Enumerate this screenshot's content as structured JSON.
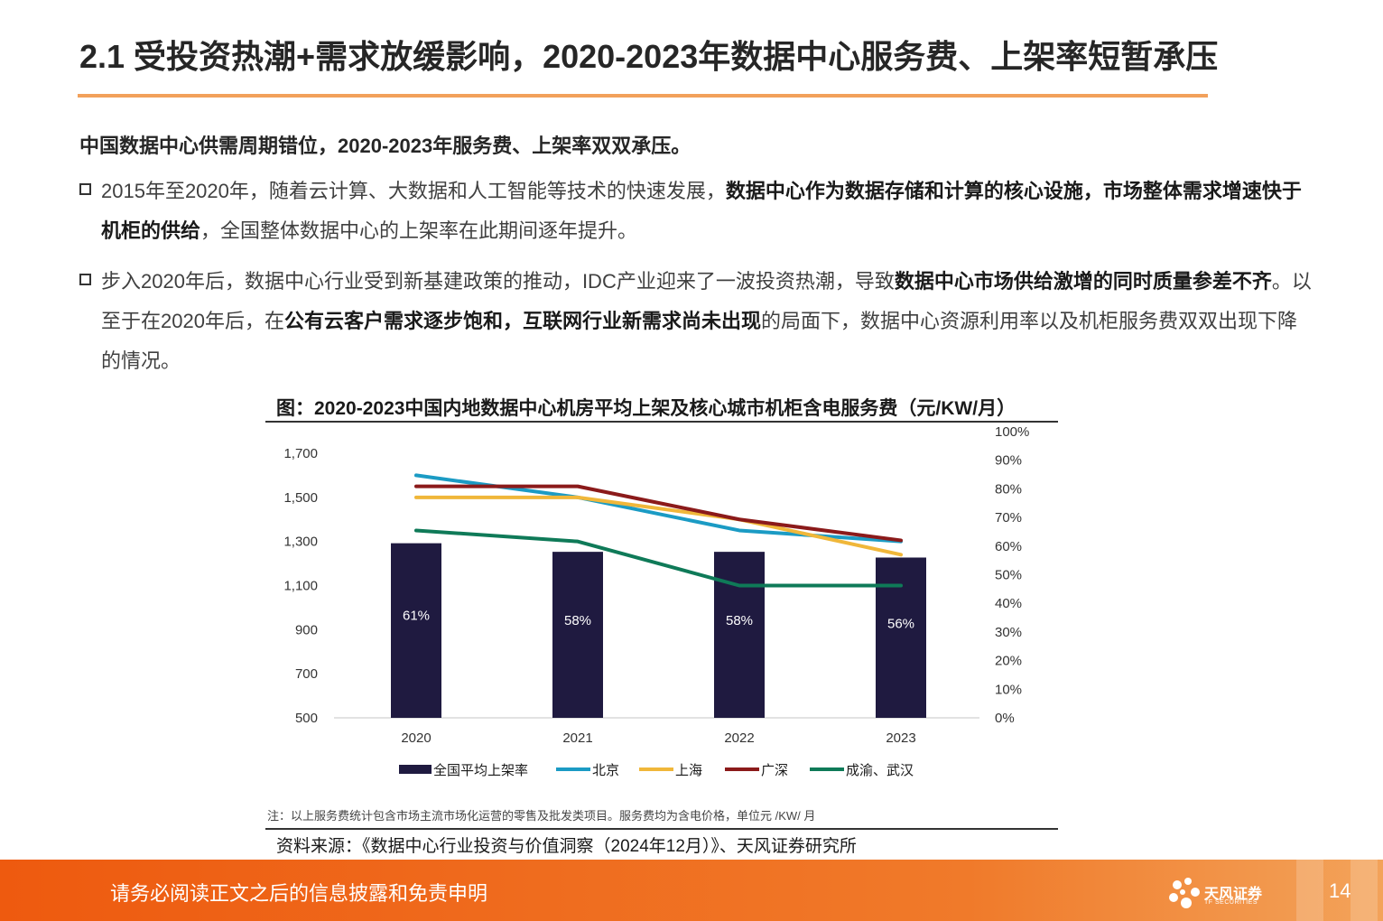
{
  "title": "2.1 受投资热潮+需求放缓影响，2020-2023年数据中心服务费、上架率短暂承压",
  "lead": "中国数据中心供需周期错位，2020-2023年服务费、上架率双双承压。",
  "bullet1": {
    "p1": "2015年至2020年，随着云计算、大数据和人工智能等技术的快速发展，",
    "b1": "数据中心作为数据存储和计算的核心设施，市场整体需求增速快于机柜的供给",
    "p2": "，全国整体数据中心的上架率在此期间逐年提升。"
  },
  "bullet2": {
    "p1": "步入2020年后，数据中心行业受到新基建政策的推动，IDC产业迎来了一波投资热潮，导致",
    "b1": "数据中心市场供给激增的同时质量参差不齐",
    "p2": "。以至于在2020年后，在",
    "b2": "公有云客户需求逐步饱和，互联网行业新需求尚未出现",
    "p3": "的局面下，数据中心资源利用率以及机柜服务费双双出现下降的情况。"
  },
  "chart_title": "图：2020-2023中国内地数据中心机房平均上架及核心城市机柜含电服务费（元/KW/月）",
  "note": "注：以上服务费统计包含市场主流市场化运营的零售及批发类项目。服务费均为含电价格，单位元 /KW/ 月",
  "source": "资料来源：《数据中心行业投资与价值洞察（2024年12月）》、天风证券研究所",
  "footer": {
    "disclaimer": "请务必阅读正文之后的信息披露和免责申明",
    "page": "14",
    "logo_cn": "天风证券",
    "logo_en": "TF SECURITIES"
  },
  "chart_data": {
    "type": "bar+line",
    "categories": [
      "2020",
      "2021",
      "2022",
      "2023"
    ],
    "bar_series": {
      "name": "全国平均上架率",
      "axis": "right",
      "values": [
        61,
        58,
        58,
        56
      ],
      "labels": [
        "61%",
        "58%",
        "58%",
        "56%"
      ],
      "color": "#1f1a40"
    },
    "line_series": [
      {
        "name": "北京",
        "axis": "left",
        "values": [
          1600,
          1500,
          1350,
          1300
        ],
        "color": "#1b9bc4"
      },
      {
        "name": "上海",
        "axis": "left",
        "values": [
          1500,
          1500,
          1400,
          1240
        ],
        "color": "#f0b73a"
      },
      {
        "name": "广深",
        "axis": "left",
        "values": [
          1550,
          1550,
          1400,
          1305
        ],
        "color": "#8b1a1a"
      },
      {
        "name": "成渝、武汉",
        "axis": "left",
        "values": [
          1350,
          1300,
          1100,
          1100
        ],
        "color": "#0f7a58"
      }
    ],
    "left_axis": {
      "min": 500,
      "max": 1700,
      "ticks": [
        500,
        700,
        900,
        1100,
        1300,
        1500,
        1700
      ],
      "tick_labels": [
        "500",
        "700",
        "900",
        "1,100",
        "1,300",
        "1,500",
        "1,700"
      ]
    },
    "right_axis": {
      "min": 0,
      "max": 100,
      "ticks": [
        0,
        10,
        20,
        30,
        40,
        50,
        60,
        70,
        80,
        90,
        100
      ],
      "tick_labels": [
        "0%",
        "10%",
        "20%",
        "30%",
        "40%",
        "50%",
        "60%",
        "70%",
        "80%",
        "90%",
        "100%"
      ]
    },
    "legend_position": "bottom"
  }
}
